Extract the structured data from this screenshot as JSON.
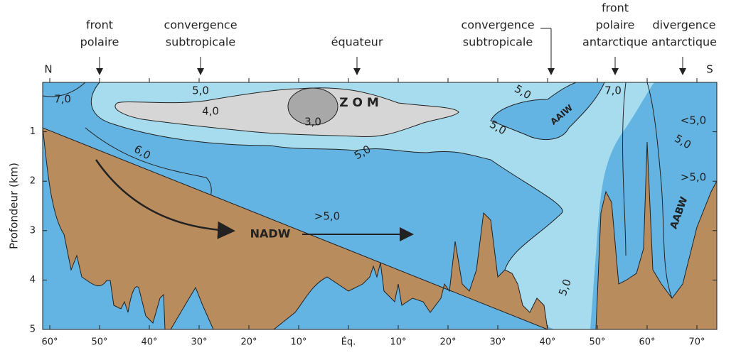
{
  "header": {
    "north": "N",
    "south": "S",
    "features": [
      {
        "lines": [
          "front",
          "polaire"
        ]
      },
      {
        "lines": [
          "convergence",
          "subtropicale"
        ]
      },
      {
        "lines": [
          "équateur"
        ]
      },
      {
        "lines": [
          "convergence",
          "subtropicale"
        ]
      },
      {
        "lines": [
          "front",
          "polaire",
          "antarctique"
        ]
      },
      {
        "lines": [
          "divergence",
          "antarctique"
        ]
      }
    ]
  },
  "y_axis": {
    "label": "Profondeur (km)",
    "ticks": [
      1,
      2,
      3,
      4,
      5
    ]
  },
  "x_axis": {
    "ticks": [
      "60°",
      "50°",
      "40°",
      "30°",
      "20°",
      "10°",
      "Éq.",
      "10°",
      "20°",
      "30°",
      "40°",
      "50°",
      "60°",
      "70°"
    ]
  },
  "contour_labels": [
    "7,0",
    "5,0",
    "4,0",
    "3,0",
    "6,0",
    "5,0",
    "5,0",
    "5,0",
    "7,0",
    "<5,0",
    "5,0",
    ">5,0",
    "5,0"
  ],
  "water_masses": [
    "Z O M",
    "AAIW",
    "NADW",
    ">5,0",
    "AABW"
  ]
}
